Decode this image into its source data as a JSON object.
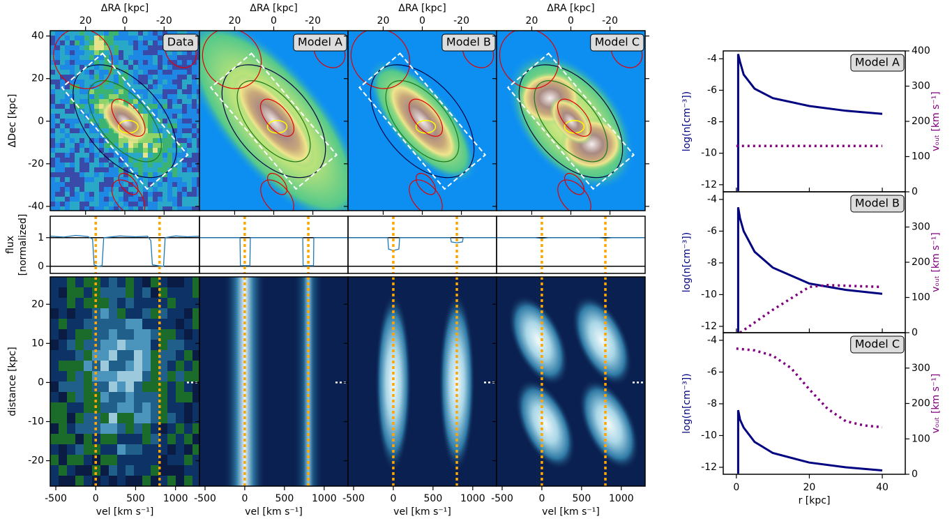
{
  "chart_data": [
    {
      "type": "image",
      "label": "Data",
      "xlabel": "ΔRA [kpc]",
      "ylabel": "ΔDec [kpc]",
      "xlim": [
        38,
        -38
      ],
      "ylim": [
        -42,
        42.5
      ],
      "xticks": [
        20,
        0,
        -20
      ],
      "yticks": [
        40,
        20,
        0,
        -20,
        -40
      ]
    },
    {
      "type": "image",
      "label": "Model A",
      "xlabel": "ΔRA [kpc]",
      "xlim": [
        38,
        -38
      ],
      "ylim": [
        -42,
        42.5
      ],
      "xticks": [
        20,
        0,
        -20
      ]
    },
    {
      "type": "image",
      "label": "Model B",
      "xlabel": "ΔRA [kpc]",
      "xlim": [
        38,
        -38
      ],
      "ylim": [
        -42,
        42.5
      ],
      "xticks": [
        20,
        0,
        -20
      ]
    },
    {
      "type": "image",
      "label": "Model C",
      "xlabel": "ΔRA [kpc]",
      "xlim": [
        38,
        -38
      ],
      "ylim": [
        -42,
        42.5
      ],
      "xticks": [
        20,
        0,
        -20
      ]
    },
    {
      "type": "line",
      "ylabel": [
        "flux",
        "[normalized]"
      ],
      "xlim": [
        -570,
        1300
      ],
      "ylim": [
        -0.25,
        1.75
      ],
      "yticks": [
        1,
        0
      ],
      "hlines": [
        0,
        1
      ],
      "markers": [
        0,
        800
      ],
      "color": "#1f77b4",
      "x": [
        -570,
        -400,
        -250,
        -100,
        -40,
        -20,
        30,
        80,
        100,
        300,
        500,
        650,
        690,
        710,
        780,
        850,
        870,
        1000,
        1150,
        1300
      ],
      "values": [
        1.05,
        1.02,
        1.08,
        1.04,
        0.95,
        0.05,
        0.0,
        0.02,
        1.0,
        1.06,
        1.03,
        1.05,
        0.9,
        0.05,
        0.02,
        0.0,
        1.0,
        1.06,
        1.03,
        1.05
      ]
    },
    {
      "type": "line",
      "xlim": [
        -570,
        1300
      ],
      "ylim": [
        -0.25,
        1.75
      ],
      "hlines": [
        0,
        1
      ],
      "markers": [
        0,
        800
      ],
      "color": "#1f77b4",
      "x": [
        -570,
        -60,
        -55,
        65,
        70,
        730,
        735,
        865,
        870,
        1300
      ],
      "values": [
        1,
        1,
        0.02,
        0.02,
        1,
        1,
        0.02,
        0.02,
        1,
        1
      ]
    },
    {
      "type": "line",
      "xlim": [
        -570,
        1300
      ],
      "ylim": [
        -0.25,
        1.75
      ],
      "hlines": [
        0,
        1
      ],
      "markers": [
        0,
        800
      ],
      "color": "#1f77b4",
      "x": [
        -570,
        -70,
        -60,
        0,
        70,
        80,
        720,
        730,
        800,
        870,
        880,
        1300
      ],
      "values": [
        1,
        1,
        0.6,
        0.55,
        0.6,
        1,
        1,
        0.85,
        0.82,
        0.85,
        1,
        1
      ]
    },
    {
      "type": "line",
      "xlim": [
        -570,
        1300
      ],
      "ylim": [
        -0.25,
        1.75
      ],
      "hlines": [
        0,
        1
      ],
      "markers": [
        0,
        800
      ],
      "color": "#1f77b4",
      "x": [
        -570,
        -80,
        0,
        80,
        720,
        800,
        880,
        1300
      ],
      "values": [
        1,
        1,
        0.97,
        1,
        1,
        0.98,
        1,
        1
      ]
    },
    {
      "type": "pv",
      "ylabel": "distance [kpc]",
      "xlabel": "vel [km s⁻¹]",
      "xlim": [
        -570,
        1300
      ],
      "ylim": [
        -26.5,
        27
      ],
      "xticks": [
        -500,
        0,
        500,
        1000
      ],
      "yticks": [
        20,
        10,
        0,
        -10,
        -20
      ],
      "markers": [
        0,
        800
      ]
    },
    {
      "type": "pv",
      "xlabel": "vel [km s⁻¹]",
      "xlim": [
        -570,
        1300
      ],
      "ylim": [
        -26.5,
        27
      ],
      "xticks": [
        -500,
        0,
        500,
        1000
      ],
      "markers": [
        0,
        800
      ]
    },
    {
      "type": "pv",
      "xlabel": "vel [km s⁻¹]",
      "xlim": [
        -570,
        1300
      ],
      "ylim": [
        -26.5,
        27
      ],
      "xticks": [
        -500,
        0,
        500,
        1000
      ],
      "markers": [
        0,
        800
      ]
    },
    {
      "type": "pv",
      "xlabel": "vel [km s⁻¹]",
      "xlim": [
        -570,
        1300
      ],
      "ylim": [
        -26.5,
        27
      ],
      "xticks": [
        -500,
        0,
        500,
        1000
      ],
      "markers": [
        0,
        800
      ]
    },
    {
      "type": "profile",
      "label": "Model A",
      "ylabel": "log(n[cm⁻³])",
      "y2label": "vₒᵤₜ [km s⁻¹]",
      "xlim": [
        -3.6,
        46.3
      ],
      "ylim": [
        -12.45,
        -3.5
      ],
      "yticks": [
        -4,
        -6,
        -8,
        -10,
        -12
      ],
      "y2lim": [
        0,
        400
      ],
      "y2ticks": [
        0,
        100,
        200,
        300,
        400
      ],
      "series": [
        {
          "color": "#000080",
          "x": [
            0.5,
            0.5,
            1,
            2,
            5,
            10,
            20,
            30,
            40
          ],
          "values": [
            -12.4,
            -3.7,
            -4.2,
            -5.0,
            -5.9,
            -6.5,
            -7.0,
            -7.3,
            -7.5
          ]
        },
        {
          "color": "#800080",
          "axis": "y2",
          "dotted": true,
          "x": [
            0,
            10,
            20,
            30,
            40
          ],
          "values": [
            130,
            130,
            130,
            130,
            130
          ]
        }
      ]
    },
    {
      "type": "profile",
      "label": "Model B",
      "ylabel": "log(n[cm⁻³])",
      "y2label": "vₒᵤₜ [km s⁻¹]",
      "xlim": [
        -3.6,
        46.3
      ],
      "ylim": [
        -12.4,
        -3.52
      ],
      "yticks": [
        -4,
        -6,
        -8,
        -10,
        -12
      ],
      "y2lim": [
        0,
        400
      ],
      "y2ticks": [
        0,
        100,
        200,
        300
      ],
      "series": [
        {
          "color": "#000080",
          "x": [
            0.5,
            0.5,
            1,
            2,
            5,
            10,
            20,
            30,
            40
          ],
          "values": [
            -12.4,
            -4.5,
            -5.2,
            -6.0,
            -7.3,
            -8.3,
            -9.3,
            -9.7,
            -9.95
          ]
        },
        {
          "color": "#800080",
          "axis": "y2",
          "dotted": true,
          "x": [
            1,
            10,
            20,
            25,
            40
          ],
          "values": [
            0,
            65,
            130,
            135,
            130
          ]
        }
      ]
    },
    {
      "type": "profile",
      "label": "Model C",
      "ylabel": "log(n[cm⁻³])",
      "y2label": "vₒᵤₜ [km s⁻¹]",
      "xlabel": "r [kpc]",
      "xlim": [
        -3.6,
        46.3
      ],
      "ylim": [
        -12.44,
        -3.52
      ],
      "yticks": [
        -4,
        -6,
        -8,
        -10,
        -12
      ],
      "y2lim": [
        0,
        400
      ],
      "y2ticks": [
        0,
        100,
        200,
        300
      ],
      "xticks": [
        0,
        20,
        40
      ],
      "series": [
        {
          "color": "#000080",
          "x": [
            0.5,
            0.5,
            1,
            2,
            5,
            10,
            20,
            30,
            40
          ],
          "values": [
            -12.4,
            -8.4,
            -9.0,
            -9.5,
            -10.4,
            -11.1,
            -11.7,
            -12.0,
            -12.2
          ]
        },
        {
          "color": "#800080",
          "axis": "y2",
          "dotted": true,
          "x": [
            0,
            5,
            10,
            15,
            20,
            25,
            30,
            35,
            40
          ],
          "values": [
            355,
            350,
            335,
            300,
            240,
            185,
            150,
            138,
            133
          ]
        }
      ]
    }
  ]
}
